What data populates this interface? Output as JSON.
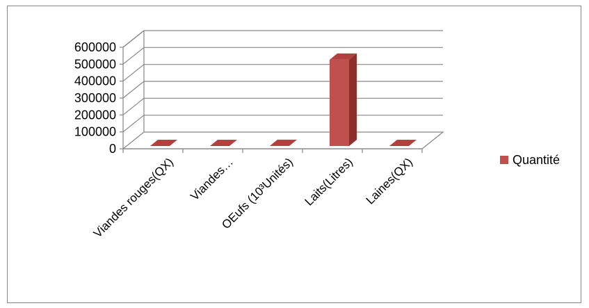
{
  "chart_data": {
    "type": "bar",
    "style": "3d-column",
    "categories": [
      "Viandes rouges(QX)",
      "Viandes…",
      "OEufs (10³Unités)",
      "Laits(Litres)",
      "Laines(QX)"
    ],
    "series": [
      {
        "name": "Quantité",
        "values": [
          150,
          100,
          300,
          510000,
          60
        ],
        "color": "#C0504D"
      }
    ],
    "y_ticks": [
      "0",
      "100000",
      "200000",
      "300000",
      "400000",
      "500000",
      "600000"
    ],
    "ylim": [
      0,
      600000
    ],
    "grid": true,
    "legend": "right"
  }
}
